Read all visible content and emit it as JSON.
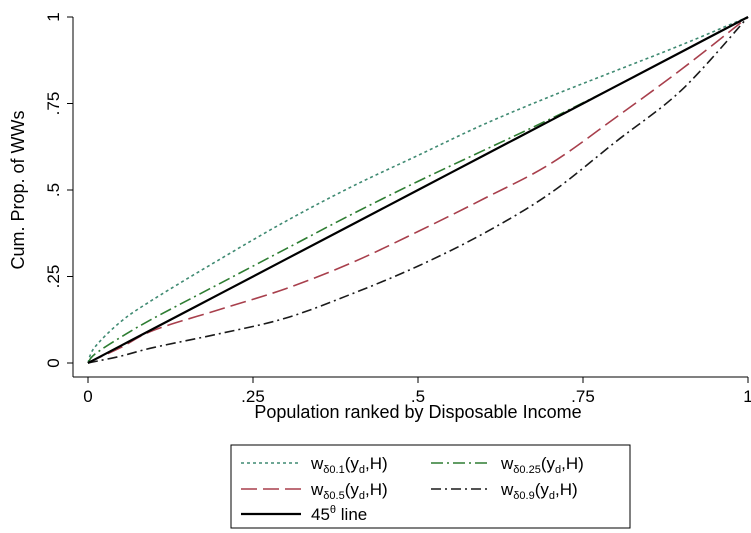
{
  "chart_data": {
    "type": "line",
    "xlabel": "Population ranked by Disposable Income",
    "ylabel": "Cum. Prop. of WWs",
    "xlim": [
      0,
      1
    ],
    "ylim": [
      0,
      1
    ],
    "x_ticks": [
      {
        "value": 0,
        "label": "0"
      },
      {
        "value": 0.25,
        "label": ".25"
      },
      {
        "value": 0.5,
        "label": ".5"
      },
      {
        "value": 0.75,
        "label": ".75"
      },
      {
        "value": 1,
        "label": "1"
      }
    ],
    "y_ticks": [
      {
        "value": 0,
        "label": "0"
      },
      {
        "value": 0.25,
        "label": ".25"
      },
      {
        "value": 0.5,
        "label": ".5"
      },
      {
        "value": 0.75,
        "label": ".75"
      },
      {
        "value": 1,
        "label": "1"
      }
    ],
    "grid": false,
    "legend_position": "bottom",
    "x": [
      0,
      0.01,
      0.05,
      0.1,
      0.2,
      0.3,
      0.4,
      0.5,
      0.6,
      0.7,
      0.8,
      0.9,
      1.0
    ],
    "series": [
      {
        "name": "w_{δ0.1}(y_d,H)",
        "legend_main": "w",
        "legend_sub": "δ0.1",
        "legend_rest": "(y",
        "legend_sub2": "d",
        "legend_tail": ",H)",
        "color": "#3f8a72",
        "dash": "3,3",
        "y": [
          0,
          0.045,
          0.12,
          0.185,
          0.3,
          0.41,
          0.51,
          0.6,
          0.69,
          0.77,
          0.845,
          0.92,
          1.0
        ]
      },
      {
        "name": "w_{δ0.25}(y_d,H)",
        "legend_main": "w",
        "legend_sub": "δ0.25",
        "legend_rest": "(y",
        "legend_sub2": "d",
        "legend_tail": ",H)",
        "color": "#2e7d32",
        "dash": "12,4,2,4",
        "y": [
          0,
          0.025,
          0.075,
          0.13,
          0.23,
          0.33,
          0.43,
          0.525,
          0.615,
          0.705,
          0.8,
          0.9,
          1.0
        ]
      },
      {
        "name": "w_{δ0.5}(y_d,H)",
        "legend_main": "w",
        "legend_sub": "δ0.5",
        "legend_rest": "(y",
        "legend_sub2": "d",
        "legend_tail": ",H)",
        "color": "#a83f4c",
        "dash": "16,6",
        "y": [
          0,
          0.01,
          0.045,
          0.095,
          0.155,
          0.215,
          0.29,
          0.38,
          0.475,
          0.575,
          0.71,
          0.85,
          1.0
        ]
      },
      {
        "name": "w_{δ0.9}(y_d,H)",
        "legend_main": "w",
        "legend_sub": "δ0.9",
        "legend_rest": "(y",
        "legend_sub2": "d",
        "legend_tail": ",H)",
        "color": "#1a1a1a",
        "dash": "10,4,2,4",
        "y": [
          0,
          0.004,
          0.02,
          0.045,
          0.085,
          0.13,
          0.2,
          0.28,
          0.375,
          0.49,
          0.64,
          0.79,
          1.0
        ]
      },
      {
        "name": "45θ line",
        "legend_main": "45",
        "legend_sup": "θ",
        "legend_tail": " line",
        "color": "#000000",
        "dash": "",
        "width": 2.2,
        "y": [
          0,
          0.01,
          0.05,
          0.1,
          0.2,
          0.3,
          0.4,
          0.5,
          0.6,
          0.7,
          0.8,
          0.9,
          1.0
        ]
      }
    ]
  }
}
